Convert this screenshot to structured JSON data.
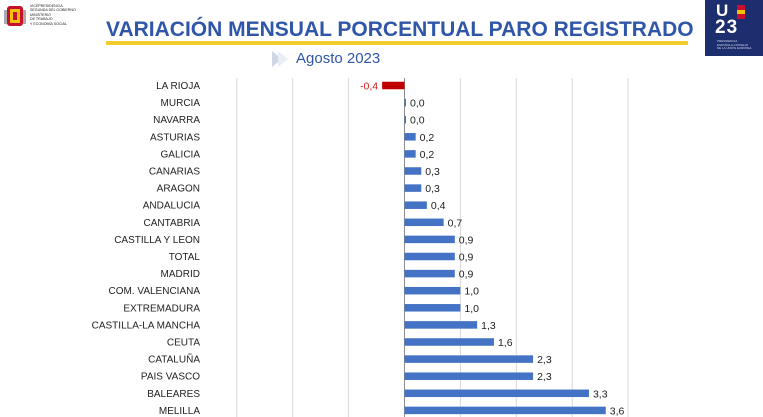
{
  "header": {
    "title": "VARIACIÓN MENSUAL PORCENTUAL PARO REGISTRADO",
    "subtitle": "Agosto 2023",
    "gov_logo_lines": [
      "VICEPRESIDENCIA",
      "SEGUNDA DEL GOBIERNO",
      "MINISTERIO",
      "DE TRABAJO",
      "Y ECONOMÍA SOCIAL"
    ],
    "presidency_logo": {
      "top": "U",
      "year": "23",
      "small": "PRESIDENCIA ESPAÑOLA CONSEJO DE LA UNIÓN EUROPEA"
    }
  },
  "colors": {
    "title": "#2f56a8",
    "underline": "#f3cd2e",
    "bar": "#4472c4",
    "negative_bar": "#c00000",
    "negative_label": "#d11c1c",
    "logo_bg": "#1d2e6e"
  },
  "chart_data": {
    "type": "bar",
    "orientation": "horizontal",
    "title": "",
    "xlabel": "",
    "ylabel": "",
    "xlim": [
      -4,
      4
    ],
    "grid": true,
    "categories": [
      "LA RIOJA",
      "MURCIA",
      "NAVARRA",
      "ASTURIAS",
      "GALICIA",
      "CANARIAS",
      "ARAGON",
      "ANDALUCIA",
      "CANTABRIA",
      "CASTILLA Y LEON",
      "TOTAL",
      "MADRID",
      "COM. VALENCIANA",
      "EXTREMADURA",
      "CASTILLA-LA MANCHA",
      "CEUTA",
      "CATALUÑA",
      "PAIS VASCO",
      "BALEARES",
      "MELILLA"
    ],
    "values": [
      -0.4,
      0.02,
      0.02,
      0.2,
      0.2,
      0.3,
      0.3,
      0.4,
      0.7,
      0.9,
      0.9,
      0.9,
      1.0,
      1.0,
      1.3,
      1.6,
      2.3,
      2.3,
      3.3,
      3.6
    ],
    "labels": [
      "-0,4",
      "0,0",
      "0,0",
      "0,2",
      "0,2",
      "0,3",
      "0,3",
      "0,4",
      "0,7",
      "0,9",
      "0,9",
      "0,9",
      "1,0",
      "1,0",
      "1,3",
      "1,6",
      "2,3",
      "2,3",
      "3,3",
      "3,6"
    ]
  }
}
